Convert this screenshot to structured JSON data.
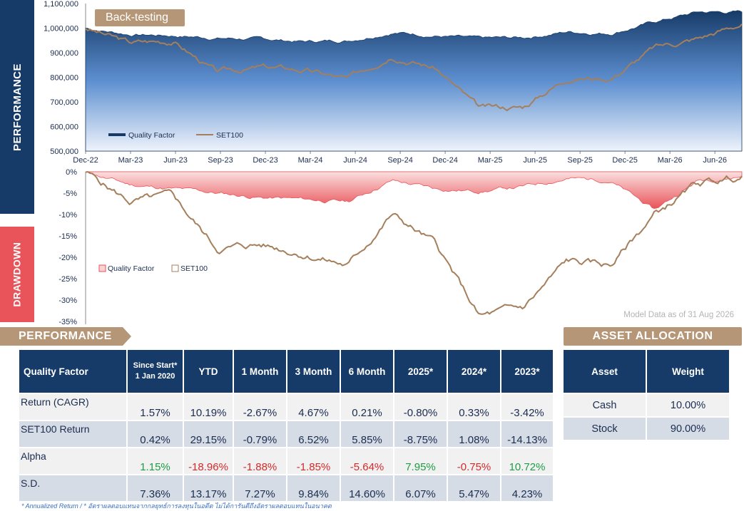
{
  "side_tabs": {
    "performance": "PERFORMANCE",
    "drawdown": "DRAWDOWN"
  },
  "backtest_badge": "Back-testing",
  "model_note": "Model Data as of 31 Aug 2026",
  "colors": {
    "navy": "#173b68",
    "gold": "#a57f5c",
    "drawdown_red": "#e8545a",
    "tan_header": "#b59677",
    "positive": "#1f9c45",
    "negative": "#d42a2a"
  },
  "chart_data": [
    {
      "type": "area",
      "title": "",
      "xlabel": "",
      "ylabel": "",
      "x_ticks": [
        "Dec-22",
        "Mar-23",
        "Jun-23",
        "Sep-23",
        "Dec-23",
        "Mar-24",
        "Jun-24",
        "Sep-24",
        "Dec-24",
        "Mar-25",
        "Jun-25",
        "Sep-25",
        "Dec-25",
        "Mar-26",
        "Jun-26"
      ],
      "y_ticks": [
        "500,000",
        "600,000",
        "700,000",
        "800,000",
        "900,000",
        "1,000,000",
        "1,100,000"
      ],
      "ylim": [
        500000,
        1100000
      ],
      "legend_position": "bottom-left",
      "series": [
        {
          "name": "Quality Factor",
          "kind": "area",
          "x": [
            "Dec-22",
            "Mar-23",
            "Jun-23",
            "Sep-23",
            "Dec-23",
            "Mar-24",
            "Jun-24",
            "Sep-24",
            "Dec-24",
            "Mar-25",
            "Jun-25",
            "Sep-25",
            "Dec-25",
            "Mar-26",
            "Jun-26",
            "Aug-26"
          ],
          "values": [
            1000000,
            975000,
            970000,
            960000,
            955000,
            945000,
            950000,
            985000,
            970000,
            955000,
            960000,
            985000,
            980000,
            1025000,
            1065000,
            1065000
          ]
        },
        {
          "name": "SET100",
          "kind": "line",
          "x": [
            "Dec-22",
            "Mar-23",
            "Jun-23",
            "Sep-23",
            "Dec-23",
            "Mar-24",
            "Jun-24",
            "Sep-24",
            "Dec-24",
            "Mar-25",
            "Jun-25",
            "Sep-25",
            "Dec-25",
            "Mar-26",
            "Jun-26",
            "Aug-26"
          ],
          "values": [
            1000000,
            940000,
            950000,
            820000,
            840000,
            830000,
            790000,
            900000,
            840000,
            670000,
            680000,
            800000,
            800000,
            920000,
            960000,
            1020000
          ]
        }
      ]
    },
    {
      "type": "area",
      "title": "",
      "xlabel": "",
      "ylabel": "",
      "y_ticks": [
        "0%",
        "-5%",
        "-10%",
        "-15%",
        "-20%",
        "-25%",
        "-30%",
        "-35%"
      ],
      "ylim": [
        -35,
        0
      ],
      "legend_position": "middle-left",
      "series": [
        {
          "name": "Quality Factor",
          "kind": "area",
          "x": [
            "Dec-22",
            "Mar-23",
            "Jun-23",
            "Sep-23",
            "Dec-23",
            "Mar-24",
            "Jun-24",
            "Sep-24",
            "Dec-24",
            "Mar-25",
            "Jun-25",
            "Sep-25",
            "Dec-25",
            "Mar-26",
            "Jun-26",
            "Aug-26"
          ],
          "values": [
            0,
            -3,
            -4,
            -5,
            -6,
            -6.5,
            -7,
            -2,
            -4,
            -4.5,
            -3.5,
            -1.5,
            -2,
            -9,
            -2,
            -1
          ]
        },
        {
          "name": "SET100",
          "kind": "line",
          "x": [
            "Dec-22",
            "Mar-23",
            "Jun-23",
            "Sep-23",
            "Dec-23",
            "Mar-24",
            "Jun-24",
            "Sep-24",
            "Dec-24",
            "Mar-25",
            "Jun-25",
            "Sep-25",
            "Dec-25",
            "Mar-26",
            "Jun-26",
            "Aug-26"
          ],
          "values": [
            0,
            -7,
            -6,
            -18,
            -17,
            -19,
            -22,
            -10,
            -17,
            -34,
            -32,
            -21,
            -22,
            -10,
            -3,
            -1
          ]
        }
      ]
    }
  ],
  "performance": {
    "header": "PERFORMANCE",
    "columns": [
      "Quality Factor",
      "Since Start*",
      "1 Jan 2020",
      "YTD",
      "1 Month",
      "3 Month",
      "6 Month",
      "2025*",
      "2024*",
      "2023*"
    ],
    "rows": [
      {
        "label": "Return (CAGR)",
        "values": [
          "1.57%",
          "10.19%",
          "-2.67%",
          "4.67%",
          "0.21%",
          "-0.80%",
          "0.33%",
          "-3.42%"
        ],
        "tone": [
          "",
          "",
          "",
          "",
          "",
          "",
          "",
          ""
        ]
      },
      {
        "label": "SET100 Return",
        "values": [
          "0.42%",
          "29.15%",
          "-0.79%",
          "6.52%",
          "5.85%",
          "-8.75%",
          "1.08%",
          "-14.13%"
        ],
        "tone": [
          "",
          "",
          "",
          "",
          "",
          "",
          "",
          ""
        ]
      },
      {
        "label": "Alpha",
        "values": [
          "1.15%",
          "-18.96%",
          "-1.88%",
          "-1.85%",
          "-5.64%",
          "7.95%",
          "-0.75%",
          "10.72%"
        ],
        "tone": [
          "pos",
          "neg",
          "neg",
          "neg",
          "neg",
          "pos",
          "neg",
          "pos"
        ]
      },
      {
        "label": "S.D.",
        "values": [
          "7.36%",
          "13.17%",
          "7.27%",
          "9.84%",
          "14.60%",
          "6.07%",
          "5.47%",
          "4.23%"
        ],
        "tone": [
          "",
          "",
          "",
          "",
          "",
          "",
          "",
          ""
        ]
      }
    ]
  },
  "allocation": {
    "header": "ASSET ALLOCATION",
    "columns": [
      "Asset",
      "Weight"
    ],
    "rows": [
      {
        "asset": "Cash",
        "weight": "10.00%"
      },
      {
        "asset": "Stock",
        "weight": "90.00%"
      }
    ]
  },
  "footnote": "* Annualized Return / * อัตราผลตอบแทนจากกลยุทธ์การลงทุนในอดีต ไม่ได้การันตีถึงอัตราผลตอบแทนในอนาคต"
}
